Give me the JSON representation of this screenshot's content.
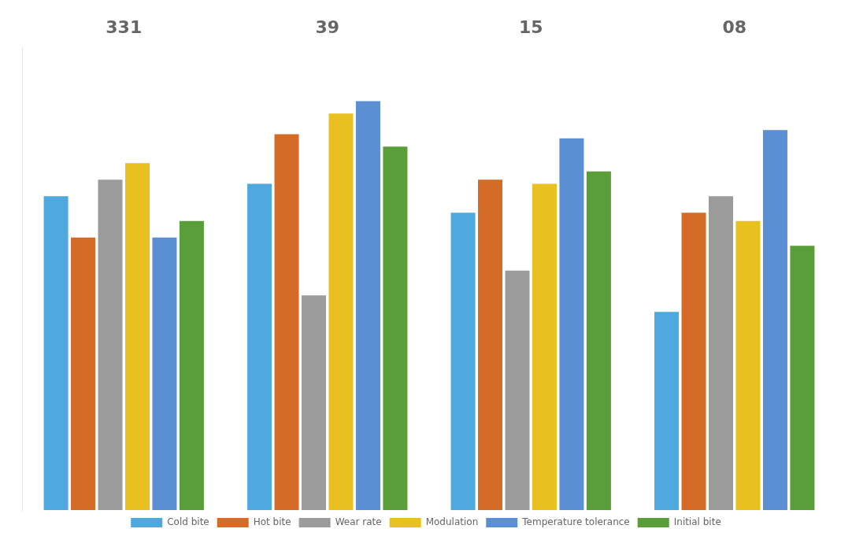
{
  "chart_data": {
    "type": "bar",
    "categories": [
      "331",
      "39",
      "15",
      "08"
    ],
    "series": [
      {
        "name": "Cold bite",
        "color": "#4fa8de",
        "values": [
          76,
          79,
          72,
          48
        ]
      },
      {
        "name": "Hot bite",
        "color": "#d46b27",
        "values": [
          66,
          91,
          80,
          72
        ]
      },
      {
        "name": "Wear rate",
        "color": "#9b9b9b",
        "values": [
          80,
          52,
          58,
          76
        ]
      },
      {
        "name": "Modulation",
        "color": "#e8c020",
        "values": [
          84,
          96,
          79,
          70
        ]
      },
      {
        "name": "Temperature tolerance",
        "color": "#5b8fd4",
        "values": [
          66,
          99,
          90,
          92
        ]
      },
      {
        "name": "Initial bite",
        "color": "#5a9e3a",
        "values": [
          70,
          88,
          82,
          64
        ]
      }
    ],
    "ylim": [
      0,
      112
    ],
    "grid": false,
    "tick_labels": "x",
    "legend": "bottom"
  }
}
